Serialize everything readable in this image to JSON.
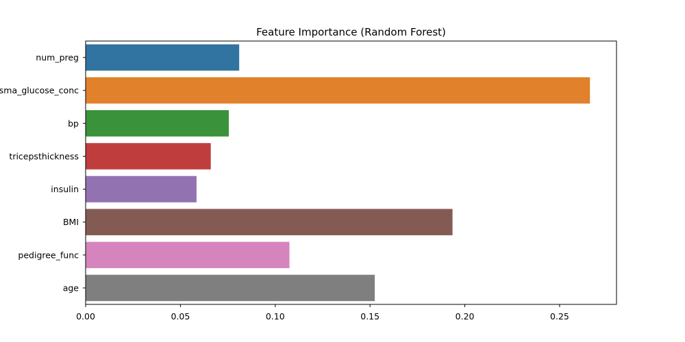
{
  "chart_data": {
    "type": "bar",
    "orientation": "horizontal",
    "title": "Feature Importance (Random Forest)",
    "xlabel": "",
    "ylabel": "",
    "categories": [
      "num_preg",
      "plasma_glucose_conc",
      "bp",
      "tricepsthickness",
      "insulin",
      "BMI",
      "pedigree_func",
      "age"
    ],
    "values": [
      0.081,
      0.266,
      0.0755,
      0.066,
      0.0585,
      0.1935,
      0.1075,
      0.1525
    ],
    "colors": [
      "#3274a1",
      "#e1812c",
      "#3a923a",
      "#c03d3e",
      "#9372b2",
      "#845b53",
      "#d684bd",
      "#7f7f7f"
    ],
    "xlim": [
      0,
      0.28
    ],
    "xticks": [
      0.0,
      0.05,
      0.1,
      0.15,
      0.2,
      0.25
    ],
    "xtick_labels": [
      "0.00",
      "0.05",
      "0.10",
      "0.15",
      "0.20",
      "0.25"
    ],
    "grid": false,
    "legend": "none"
  }
}
